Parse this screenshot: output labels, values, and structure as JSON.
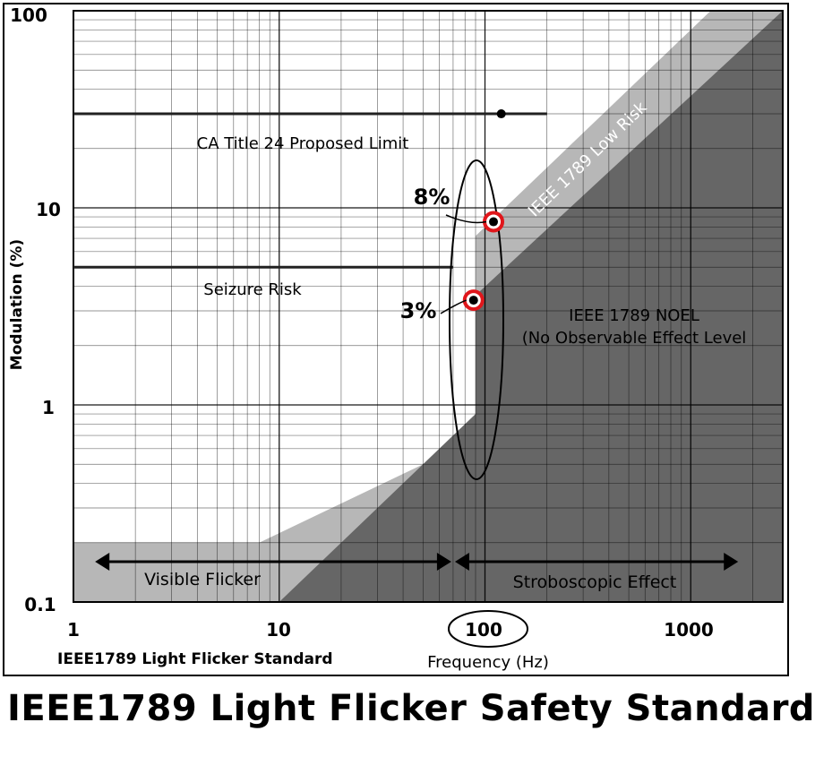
{
  "chart_data": {
    "type": "line",
    "xscale": "log",
    "yscale": "log",
    "xlim": [
      1,
      2800
    ],
    "ylim": [
      0.1,
      100
    ],
    "xlabel": "Frequency (Hz)",
    "ylabel": "Modulation (%)",
    "x_ticks": [
      "1",
      "10",
      "100",
      "1000"
    ],
    "y_ticks": [
      "0.1",
      "1",
      "10",
      "100"
    ],
    "grid": true,
    "subtitle": "IEEE1789 Light Flicker Standard",
    "regions": [
      {
        "name": "IEEE 1789 Low Risk",
        "boundary": [
          [
            1,
            0.2
          ],
          [
            8,
            0.2
          ],
          [
            90,
            0.67
          ],
          [
            90,
            7.2
          ],
          [
            1250,
            100
          ]
        ]
      },
      {
        "name": "IEEE 1789 NOEL (No Observable Effect Level",
        "boundary": [
          [
            10,
            0.1
          ],
          [
            90,
            0.9
          ],
          [
            90,
            3.6
          ],
          [
            2800,
            100
          ]
        ]
      }
    ],
    "series": [
      {
        "name": "CA Title 24 Proposed Limit",
        "x": [
          1,
          200
        ],
        "y": [
          30,
          30
        ]
      },
      {
        "name": "Seizure Risk",
        "x": [
          1,
          70
        ],
        "y": [
          5,
          5
        ]
      }
    ],
    "points": [
      {
        "x": 120,
        "y": 30
      },
      {
        "x": 110,
        "y": 8.5,
        "label": "8%",
        "highlight": "#e0161b"
      },
      {
        "x": 88,
        "y": 3.4,
        "label": "3%",
        "highlight": "#e0161b"
      }
    ],
    "ranges": [
      {
        "label": "Visible Flicker",
        "x": [
          1.3,
          70
        ]
      },
      {
        "label": "Stroboscopic Effect",
        "x": [
          70,
          1700
        ]
      }
    ],
    "colors": {
      "low_risk_fill": "#b7b7b7",
      "noel_fill": "#666666",
      "grid": "#000000",
      "highlight": "#e0161b"
    }
  },
  "footer_title": "IEEE1789 Light Flicker Safety Standard"
}
